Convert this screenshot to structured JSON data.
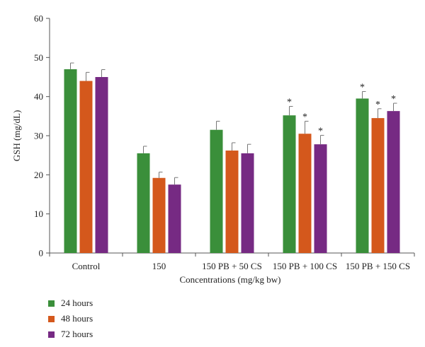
{
  "chart_data": {
    "type": "bar",
    "xlabel": "Concentrations (mg/kg bw)",
    "ylabel": "GSH (mg/dL)",
    "ylim": [
      0,
      60
    ],
    "yticks": [
      0,
      10,
      20,
      30,
      40,
      50,
      60
    ],
    "categories": [
      "Control",
      "150",
      "150 PB + 50 CS",
      "150 PB + 100 CS",
      "150 PB + 150 CS"
    ],
    "series": [
      {
        "name": "24 hours",
        "color": "#3a8f3a",
        "values": [
          47.0,
          25.5,
          31.5,
          35.2,
          39.5
        ],
        "errors": [
          1.6,
          1.8,
          2.2,
          2.3,
          1.8
        ],
        "significant": [
          false,
          false,
          false,
          true,
          true
        ]
      },
      {
        "name": "48 hours",
        "color": "#d4581c",
        "values": [
          44.0,
          19.2,
          26.2,
          30.5,
          34.5
        ],
        "errors": [
          2.2,
          1.5,
          2.0,
          3.2,
          2.4
        ],
        "significant": [
          false,
          false,
          false,
          true,
          true
        ]
      },
      {
        "name": "72 hours",
        "color": "#762a83",
        "values": [
          45.0,
          17.5,
          25.5,
          27.8,
          36.3
        ],
        "errors": [
          1.9,
          1.8,
          2.3,
          2.3,
          2.0
        ],
        "significant": [
          false,
          false,
          false,
          true,
          true
        ]
      }
    ],
    "significance_marker": "*",
    "grid": false,
    "legend_position": "bottom-left"
  }
}
